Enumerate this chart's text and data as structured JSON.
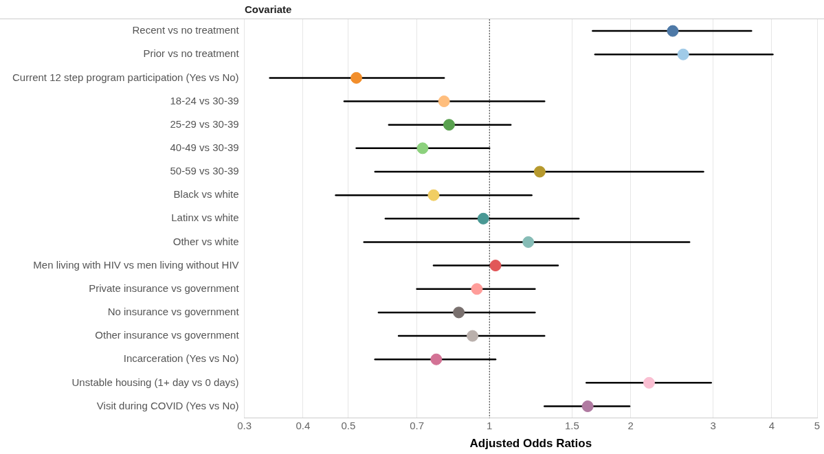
{
  "chart_data": {
    "type": "scatter",
    "orientation": "horizontal",
    "xlabel": "Adjusted Odds Ratios",
    "ylabel": "Covariate",
    "categories": [
      "Recent vs no treatment",
      "Prior vs no treatment",
      "Current 12 step program participation (Yes vs No)",
      "18-24 vs 30-39",
      "25-29 vs 30-39",
      "40-49 vs 30-39",
      "50-59 vs 30-39",
      "Black vs white",
      "Latinx vs white",
      "Other vs white",
      "Men living with HIV vs men living without HIV",
      "Private insurance vs government",
      "No insurance vs government",
      "Other insurance vs government",
      "Incarceration (Yes vs No)",
      "Unstable housing (1+ day vs 0 days)",
      "Visit during COVID (Yes vs No)"
    ],
    "values": [
      2.46,
      2.59,
      0.52,
      0.8,
      0.82,
      0.72,
      1.28,
      0.76,
      0.97,
      1.21,
      1.03,
      0.94,
      0.86,
      0.92,
      0.77,
      2.19,
      1.62
    ],
    "errors": [
      [
        1.66,
        3.62
      ],
      [
        1.68,
        4.02
      ],
      [
        0.34,
        0.8
      ],
      [
        0.49,
        1.31
      ],
      [
        0.61,
        1.11
      ],
      [
        0.52,
        1.0
      ],
      [
        0.57,
        2.86
      ],
      [
        0.47,
        1.23
      ],
      [
        0.6,
        1.55
      ],
      [
        0.54,
        2.67
      ],
      [
        0.76,
        1.4
      ],
      [
        0.7,
        1.25
      ],
      [
        0.58,
        1.25
      ],
      [
        0.64,
        1.31
      ],
      [
        0.57,
        1.03
      ],
      [
        1.61,
        2.97
      ],
      [
        1.31,
        1.99
      ]
    ],
    "colors": [
      "#4e79a7",
      "#a0cbe8",
      "#f28e2b",
      "#ffbe7d",
      "#59a14f",
      "#8cd17d",
      "#b6992d",
      "#f1ce63",
      "#499894",
      "#86bcb6",
      "#e15759",
      "#ff9d9a",
      "#79706e",
      "#bab0ac",
      "#d37295",
      "#fabfd2",
      "#b07aa1"
    ],
    "xlim": [
      0.3,
      5
    ],
    "xticks": [
      0.3,
      0.4,
      0.5,
      0.7,
      1,
      1.5,
      2,
      3,
      4,
      5
    ],
    "log": "x",
    "grid": "x",
    "marker": "circle",
    "ref_lines": [
      {
        "axis": "x",
        "value": 1,
        "line_style": "dotted",
        "color": "#333333"
      }
    ]
  }
}
